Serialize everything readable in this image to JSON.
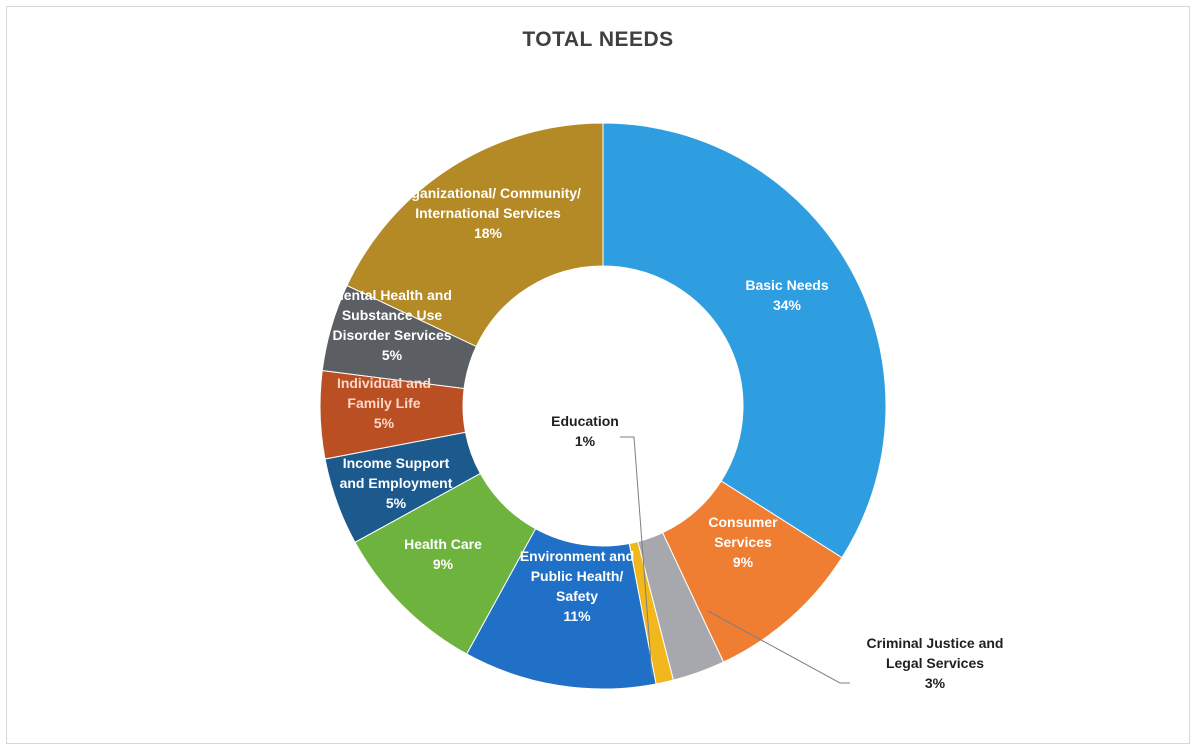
{
  "chart_data": {
    "type": "pie",
    "title": "TOTAL NEEDS",
    "slices": [
      {
        "label": [
          "Basic Needs",
          "34%"
        ],
        "value": 34,
        "color": "#2e9ee0"
      },
      {
        "label": [
          "Consumer",
          "Services",
          "9%"
        ],
        "value": 9,
        "color": "#ef7e32"
      },
      {
        "label": [
          "Criminal Justice and",
          "Legal Services",
          "3%"
        ],
        "value": 3,
        "color": "#a6a8ad"
      },
      {
        "label": [
          "Education",
          "1%"
        ],
        "value": 1,
        "color": "#f2b71d"
      },
      {
        "label": [
          "Environment and",
          "Public Health/",
          "Safety",
          "11%"
        ],
        "value": 11,
        "color": "#1f70c6"
      },
      {
        "label": [
          "Health Care",
          "9%"
        ],
        "value": 9,
        "color": "#6fb33f"
      },
      {
        "label": [
          "Income Support",
          "and Employment",
          "5%"
        ],
        "value": 5,
        "color": "#1c5a8e"
      },
      {
        "label": [
          "Individual and",
          "Family Life",
          "5%"
        ],
        "value": 5,
        "color": "#b94f22"
      },
      {
        "label": [
          "Mental Health and",
          "Substance Use",
          "Disorder Services",
          "5%"
        ],
        "value": 5,
        "color": "#5b5e63"
      },
      {
        "label": [
          "Organizational/ Community/",
          "International Services",
          "18%"
        ],
        "value": 18,
        "color": "#b48a26"
      }
    ]
  }
}
